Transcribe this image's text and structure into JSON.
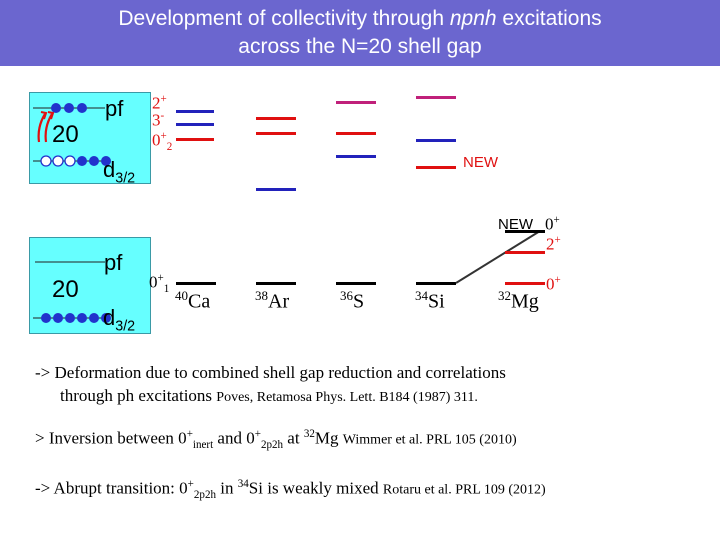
{
  "title": {
    "line1_pre": "Development of collectivity through ",
    "line1_italic": "npnh",
    "line1_post": " excitations",
    "line2": "across the N=20 shell gap"
  },
  "shell_box_top": {
    "upper_label": "pf",
    "gap_number": "20",
    "lower_label": "d",
    "lower_sub": "3/2"
  },
  "shell_box_bottom": {
    "upper_label": "pf",
    "gap_number": "20",
    "lower_label": "d",
    "lower_sub": "3/2"
  },
  "level_labels": {
    "two_plus": "2",
    "sup_plus": "+",
    "three_minus": "3",
    "sup_minus": "-",
    "zero_plus_2": "0",
    "sub_2": "2",
    "zero_plus_1": "0",
    "sub_1": "1"
  },
  "new_labels": {
    "upper": "NEW",
    "lower": "NEW"
  },
  "mg32_labels": {
    "zero_plus_excited": "0",
    "two_plus": "2",
    "zero_plus_ground": "0",
    "plus": "+"
  },
  "nuclei": [
    {
      "mass": "40",
      "symbol": "Ca"
    },
    {
      "mass": "38",
      "symbol": "Ar"
    },
    {
      "mass": "36",
      "symbol": "S"
    },
    {
      "mass": "34",
      "symbol": "Si"
    },
    {
      "mass": "32",
      "symbol": "Mg"
    }
  ],
  "notes": {
    "note1_line1": "-> Deformation due to combined shell gap reduction and correlations",
    "note1_line2": "through ph excitations",
    "note1_ref": "Poves, Retamosa Phys. Lett. B184 (1987) 311.",
    "note2_prefix": "> Inversion between 0",
    "note2_sup1": "+",
    "note2_sub1": "inert",
    "note2_and": " and 0",
    "note2_sup2": "+",
    "note2_sub2": "2p2h",
    "note2_at": " at ",
    "note2_mass": "32",
    "note2_element": "Mg",
    "note2_ref": "Wimmer et al. PRL 105 (2010)",
    "note3_prefix": "-> Abrupt transition: 0",
    "note3_sup": "+",
    "note3_sub": "2p2h",
    "note3_in": " in ",
    "note3_mass": "34",
    "note3_element": "Si",
    "note3_post": " is weakly mixed",
    "note3_ref": "Rotaru et al. PRL 109 (2012)"
  },
  "colors": {
    "title_bg": "#6b66cf",
    "box_bg": "#66ffff",
    "red_level": "#e01010",
    "blue_level": "#2222bb",
    "magenta_level": "#c0207a"
  }
}
